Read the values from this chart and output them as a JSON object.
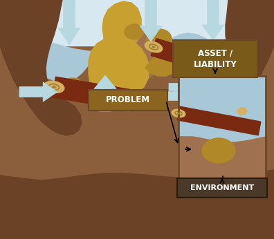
{
  "sky_color": "#d8e8f0",
  "water_color": "#a8c8d8",
  "soil_outer": "#6B4226",
  "soil_mid": "#8B5E3C",
  "soil_inner": "#A0714F",
  "obstacle_color": "#C8A030",
  "obstacle_dark": "#B08828",
  "log_body": "#7A2A10",
  "log_end_outer": "#D4B060",
  "log_end_inner": "#C8A040",
  "log_end_ring": "#A08030",
  "arrow_color": "#B8D8E0",
  "arrow_outline": "#90B8C8",
  "label_bg_asset": "#7A5A18",
  "label_bg_problem": "#8B6520",
  "label_bg_env": "#4A3828",
  "label_text": "#FFFFFF",
  "env_box_fill": "#8B6A3A",
  "env_box_border": "#6B4A28",
  "problem_label": "PROBLEM",
  "asset_label": "ASSET /\nLIABILITY",
  "env_label": "ENVIRONMENT",
  "figsize": [
    3.96,
    3.46
  ],
  "dpi": 100
}
